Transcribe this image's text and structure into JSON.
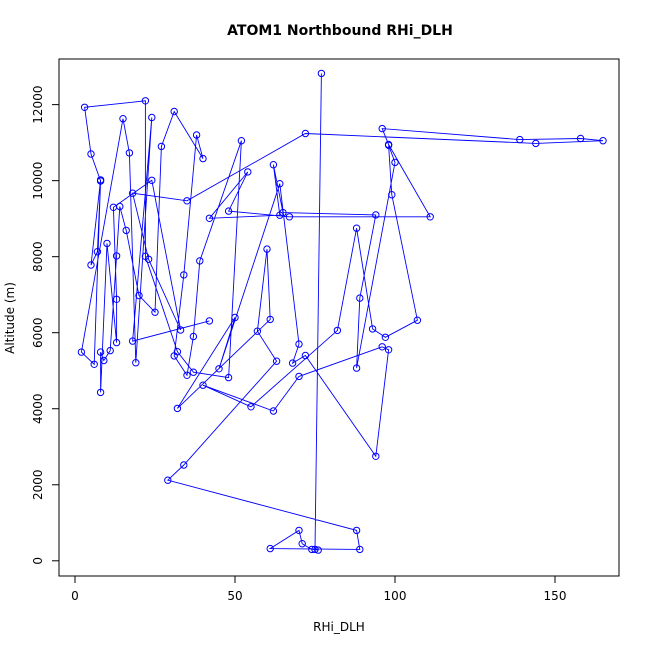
{
  "chart_data": {
    "type": "line",
    "title": "ATOM1 Northbound RHi_DLH",
    "xlabel": "RHi_DLH",
    "ylabel": "Altitude (m)",
    "xlim": [
      -5,
      170
    ],
    "ylim": [
      -400,
      13200
    ],
    "xticks": [
      0,
      50,
      100,
      150
    ],
    "yticks": [
      0,
      2000,
      4000,
      6000,
      8000,
      10000,
      12000
    ],
    "grid": false,
    "markers": "open-circle",
    "series": [
      {
        "color": "#0000ff",
        "points": [
          [
            77,
            12820
          ],
          [
            75,
            300
          ],
          [
            76,
            280
          ],
          [
            74,
            300
          ],
          [
            71,
            450
          ],
          [
            70,
            800
          ],
          [
            61,
            320
          ],
          [
            89,
            300
          ],
          [
            88,
            800
          ],
          [
            29,
            2120
          ],
          [
            34,
            2520
          ],
          [
            63,
            5250
          ],
          [
            57,
            6040
          ],
          [
            60,
            8200
          ],
          [
            61,
            6350
          ],
          [
            32,
            4010
          ],
          [
            50,
            6400
          ],
          [
            45,
            5050
          ],
          [
            64,
            9920
          ],
          [
            70,
            5700
          ],
          [
            68,
            5200
          ],
          [
            72,
            5400
          ],
          [
            94,
            2750
          ],
          [
            98,
            5550
          ],
          [
            96,
            5630
          ],
          [
            70,
            4850
          ],
          [
            62,
            3940
          ],
          [
            40,
            4620
          ],
          [
            55,
            4050
          ],
          [
            82,
            6060
          ],
          [
            88,
            8750
          ],
          [
            93,
            6100
          ],
          [
            97,
            5880
          ],
          [
            107,
            6330
          ],
          [
            99,
            9630
          ],
          [
            98,
            10930
          ],
          [
            100,
            10480
          ],
          [
            88,
            5070
          ],
          [
            89,
            6910
          ],
          [
            94,
            9100
          ],
          [
            65,
            9160
          ],
          [
            62,
            10420
          ],
          [
            64,
            9090
          ],
          [
            42,
            9010
          ],
          [
            54,
            10230
          ],
          [
            48,
            9200
          ],
          [
            67,
            9050
          ],
          [
            111,
            9050
          ],
          [
            98,
            10950
          ],
          [
            96,
            11370
          ],
          [
            139,
            11080
          ],
          [
            158,
            11110
          ],
          [
            165,
            11050
          ],
          [
            144,
            10980
          ],
          [
            72,
            11240
          ],
          [
            35,
            9470
          ],
          [
            18,
            9670
          ],
          [
            23,
            7930
          ],
          [
            33,
            6070
          ],
          [
            24,
            10010
          ],
          [
            12,
            9300
          ],
          [
            13,
            6880
          ],
          [
            13,
            5740
          ],
          [
            10,
            8350
          ],
          [
            8,
            4430
          ],
          [
            8,
            5490
          ],
          [
            9,
            5270
          ],
          [
            11,
            5530
          ],
          [
            13,
            8020
          ],
          [
            14,
            9320
          ],
          [
            16,
            8690
          ],
          [
            20,
            6980
          ],
          [
            25,
            6540
          ],
          [
            27,
            10900
          ],
          [
            31,
            11820
          ],
          [
            40,
            10580
          ],
          [
            38,
            11200
          ],
          [
            34,
            7520
          ],
          [
            31,
            5390
          ],
          [
            35,
            4880
          ],
          [
            37,
            5900
          ],
          [
            39,
            7890
          ],
          [
            52,
            11050
          ],
          [
            48,
            4820
          ],
          [
            37,
            4960
          ],
          [
            32,
            5500
          ],
          [
            22,
            8010
          ],
          [
            22,
            12100
          ],
          [
            3,
            11930
          ],
          [
            5,
            10700
          ],
          [
            8,
            9990
          ],
          [
            7,
            8130
          ],
          [
            5,
            7780
          ],
          [
            8,
            10020
          ],
          [
            6,
            5170
          ],
          [
            2,
            5490
          ],
          [
            15,
            11630
          ],
          [
            17,
            10730
          ],
          [
            19,
            5210
          ],
          [
            24,
            11660
          ],
          [
            18,
            5780
          ],
          [
            42,
            6310
          ]
        ]
      }
    ]
  }
}
